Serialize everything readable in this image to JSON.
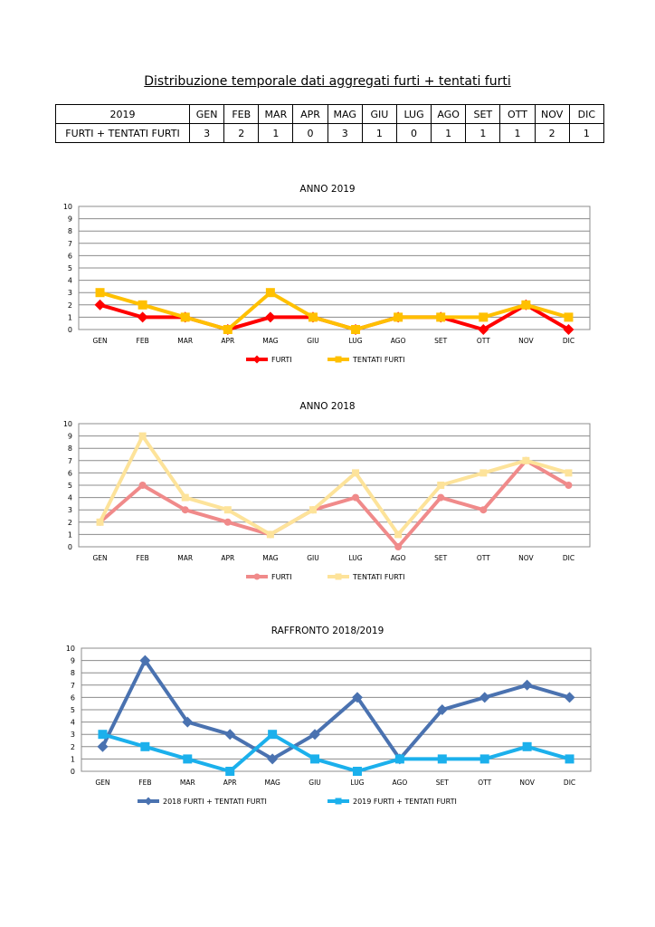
{
  "document": {
    "title": "Distribuzione temporale dati aggregati furti + tentati furti"
  },
  "table": {
    "header": [
      "2019",
      "GEN",
      "FEB",
      "MAR",
      "APR",
      "MAG",
      "GIU",
      "LUG",
      "AGO",
      "SET",
      "OTT",
      "NOV",
      "DIC"
    ],
    "row": [
      "FURTI + TENTATI FURTI",
      "3",
      "2",
      "1",
      "0",
      "3",
      "1",
      "0",
      "1",
      "1",
      "1",
      "2",
      "1"
    ]
  },
  "chart_data": [
    {
      "type": "line",
      "title": "ANNO 2019",
      "categories": [
        "GEN",
        "FEB",
        "MAR",
        "APR",
        "MAG",
        "GIU",
        "LUG",
        "AGO",
        "SET",
        "OTT",
        "NOV",
        "DIC"
      ],
      "ylim": [
        0,
        10
      ],
      "yticks": [
        0,
        1,
        2,
        3,
        4,
        5,
        6,
        7,
        8,
        9,
        10
      ],
      "grid": true,
      "legend_position": "bottom",
      "series": [
        {
          "name": "FURTI",
          "color": "#ff0000",
          "marker": "diamond",
          "values": [
            2,
            1,
            1,
            0,
            1,
            1,
            0,
            1,
            1,
            0,
            2,
            0
          ]
        },
        {
          "name": "TENTATI FURTI",
          "color": "#ffc000",
          "marker": "square",
          "values": [
            3,
            2,
            1,
            0,
            3,
            1,
            0,
            1,
            1,
            1,
            2,
            1
          ]
        }
      ]
    },
    {
      "type": "line",
      "title": "ANNO 2018",
      "categories": [
        "GEN",
        "FEB",
        "MAR",
        "APR",
        "MAG",
        "GIU",
        "LUG",
        "AGO",
        "SET",
        "OTT",
        "NOV",
        "DIC"
      ],
      "ylim": [
        0,
        10
      ],
      "yticks": [
        0,
        1,
        2,
        3,
        4,
        5,
        6,
        7,
        8,
        9,
        10
      ],
      "grid": true,
      "legend_position": "bottom",
      "series": [
        {
          "name": "FURTI",
          "color": "#f08a8a",
          "marker": "circle",
          "values": [
            2,
            5,
            3,
            2,
            1,
            3,
            4,
            0,
            4,
            3,
            7,
            5
          ]
        },
        {
          "name": "TENTATI FURTI",
          "color": "#fde39a",
          "marker": "square",
          "values": [
            2,
            9,
            4,
            3,
            1,
            3,
            6,
            1,
            5,
            6,
            7,
            6
          ]
        }
      ]
    },
    {
      "type": "line",
      "title": "RAFFRONTO 2018/2019",
      "categories": [
        "GEN",
        "FEB",
        "MAR",
        "APR",
        "MAG",
        "GIU",
        "LUG",
        "AGO",
        "SET",
        "OTT",
        "NOV",
        "DIC"
      ],
      "ylim": [
        0,
        10
      ],
      "yticks": [
        0,
        1,
        2,
        3,
        4,
        5,
        6,
        7,
        8,
        9,
        10
      ],
      "grid": true,
      "legend_position": "bottom",
      "series": [
        {
          "name": "2018 FURTI + TENTATI FURTI",
          "color": "#4a72b0",
          "marker": "diamond",
          "values": [
            2,
            9,
            4,
            3,
            1,
            3,
            6,
            1,
            5,
            6,
            7,
            6
          ]
        },
        {
          "name": "2019 FURTI + TENTATI FURTI",
          "color": "#1bb0ec",
          "marker": "square",
          "values": [
            3,
            2,
            1,
            0,
            3,
            1,
            0,
            1,
            1,
            1,
            2,
            1
          ]
        }
      ]
    }
  ]
}
